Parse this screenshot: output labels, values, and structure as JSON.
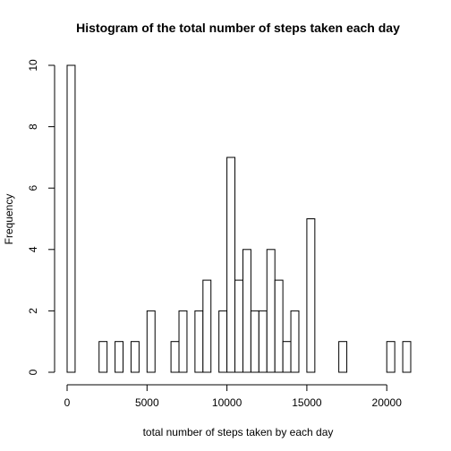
{
  "chart_data": {
    "type": "bar",
    "title": "Histogram of the total number of steps taken each day",
    "xlabel": "total number of steps taken by each day",
    "ylabel": "Frequency",
    "bin_width": 500,
    "bin_start": 0,
    "xlim": [
      0,
      21500
    ],
    "ylim": [
      0,
      10
    ],
    "x_ticks": [
      0,
      5000,
      10000,
      15000,
      20000
    ],
    "x_tick_labels": [
      "0",
      "5000",
      "10000",
      "15000",
      "20000"
    ],
    "y_ticks": [
      0,
      2,
      4,
      6,
      8,
      10
    ],
    "y_tick_labels": [
      "0",
      "2",
      "4",
      "6",
      "8",
      "10"
    ],
    "values": [
      10,
      0,
      0,
      0,
      1,
      0,
      1,
      0,
      1,
      0,
      2,
      0,
      0,
      1,
      2,
      0,
      2,
      3,
      0,
      2,
      7,
      3,
      4,
      2,
      2,
      4,
      3,
      1,
      2,
      0,
      5,
      0,
      0,
      0,
      1,
      0,
      0,
      0,
      0,
      0,
      1,
      0,
      1
    ],
    "grid": false,
    "bar_fill": "#ffffff",
    "bar_stroke": "#000000"
  }
}
